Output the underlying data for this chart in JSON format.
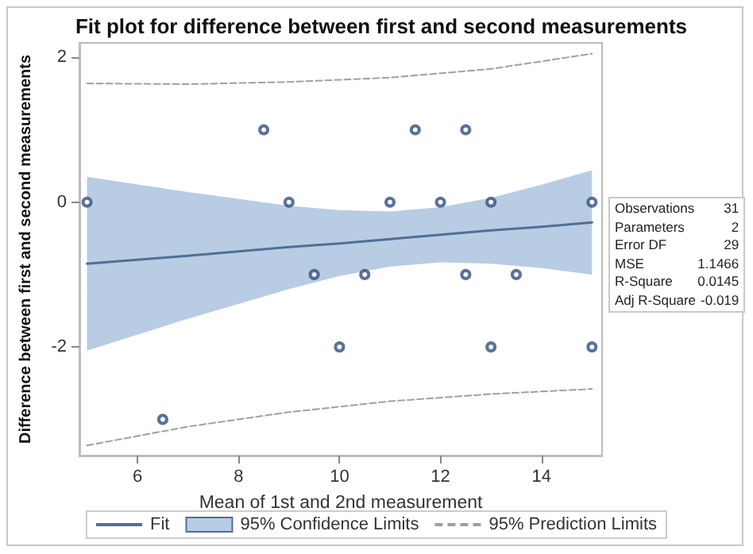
{
  "chart_data": {
    "type": "scatter",
    "title": "Fit plot for difference between first and second measurements",
    "xlabel": "Mean of 1st and 2nd measurement",
    "ylabel": "Difference between first and second measurements",
    "xlim": [
      4.85,
      15.2
    ],
    "xticks": [
      6,
      8,
      10,
      12,
      14
    ],
    "ylim": [
      -3.5,
      2.2
    ],
    "yticks": [
      -2,
      0,
      2
    ],
    "grid": false,
    "legend": "bottom",
    "marker": "circle",
    "series": [
      {
        "type": "line",
        "name": "Fit",
        "color": "#4f6f96",
        "marker": "none",
        "x": [
          5,
          7,
          9,
          10,
          11,
          12,
          13,
          14,
          15
        ],
        "values": [
          -0.85,
          -0.74,
          -0.62,
          -0.57,
          -0.51,
          -0.45,
          -0.39,
          -0.34,
          -0.28
        ],
        "upper": [
          0.35,
          0.14,
          -0.05,
          -0.11,
          -0.13,
          -0.07,
          0.06,
          0.24,
          0.44
        ],
        "lower": [
          -2.05,
          -1.61,
          -1.2,
          -1.02,
          -0.89,
          -0.83,
          -0.85,
          -0.91,
          -1.0
        ]
      },
      {
        "type": "line",
        "name": "95% Prediction Limits",
        "color": "#a0a0a0",
        "marker": "none",
        "line_style": "dashed",
        "x": [
          5,
          7,
          9,
          11,
          13,
          15
        ],
        "values": [
          1.64,
          1.63,
          1.66,
          1.72,
          1.84,
          2.05
        ]
      },
      {
        "type": "line",
        "color": "#a0a0a0",
        "marker": "none",
        "line_style": "dashed",
        "x": [
          5,
          7,
          9,
          11,
          13,
          15
        ],
        "values": [
          -3.36,
          -3.1,
          -2.9,
          -2.75,
          -2.65,
          -2.58
        ]
      },
      {
        "color": "#2f4f7f",
        "x": [
          5,
          6.5,
          8.5,
          9,
          9.5,
          10,
          10.5,
          11,
          11.5,
          12,
          12.5,
          12.5,
          13,
          13,
          13.5,
          15,
          15
        ],
        "values": [
          0,
          -3,
          1,
          0,
          -1,
          -2,
          -1,
          0,
          1,
          0,
          1,
          -1,
          0,
          -2,
          -1,
          0,
          -2
        ]
      }
    ],
    "annotations": [
      "95% Confidence Limits",
      "Observations 31",
      "Parameters 2",
      "Error DF 29",
      "MSE 1.1466",
      "R-Square 0.0145",
      "Adj R-Square -0.019"
    ]
  }
}
